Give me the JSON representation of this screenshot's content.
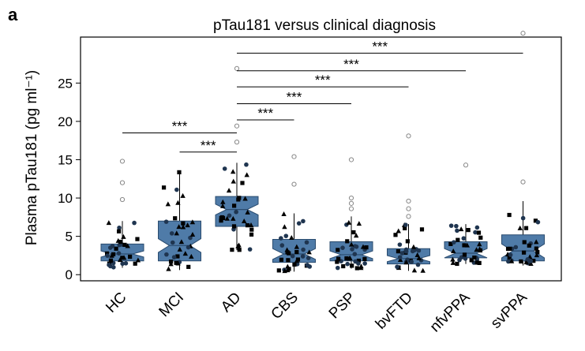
{
  "panel_label": "a",
  "chart_data": {
    "type": "box",
    "title": "pTau181 versus clinical diagnosis",
    "ylabel": "Plasma pTau181 (pg ml⁻¹)",
    "xlabel": "",
    "ylim": [
      -0.8,
      31
    ],
    "yticks": [
      0,
      5,
      10,
      15,
      20,
      25
    ],
    "grid": false,
    "categories": [
      "HC",
      "MCI",
      "AD",
      "CBS",
      "PSP",
      "bvFTD",
      "nfvPPA",
      "svPPA"
    ],
    "box_color": "#4f7ba8",
    "box_edge": "#2a4b6e",
    "series": [
      {
        "name": "HC",
        "q1": 1.8,
        "median": 2.7,
        "q3": 4.0,
        "notch_lo": 2.3,
        "notch_hi": 3.1,
        "whisker_lo": 0.9,
        "whisker_hi": 7.0,
        "outliers": [
          9.8,
          12.0,
          14.8
        ]
      },
      {
        "name": "MCI",
        "q1": 1.8,
        "median": 3.8,
        "q3": 7.0,
        "notch_lo": 2.9,
        "notch_hi": 4.7,
        "whisker_lo": 0.6,
        "whisker_hi": 13.5,
        "outliers": []
      },
      {
        "name": "AD",
        "q1": 6.3,
        "median": 8.5,
        "q3": 10.2,
        "notch_lo": 7.8,
        "notch_hi": 9.2,
        "whisker_lo": 3.2,
        "whisker_hi": 14.6,
        "outliers": [
          17.3,
          19.4,
          26.9
        ]
      },
      {
        "name": "CBS",
        "q1": 1.6,
        "median": 2.7,
        "q3": 4.6,
        "notch_lo": 2.0,
        "notch_hi": 3.4,
        "whisker_lo": 0.4,
        "whisker_hi": 8.0,
        "outliers": [
          11.8,
          15.4
        ]
      },
      {
        "name": "PSP",
        "q1": 1.8,
        "median": 2.6,
        "q3": 4.3,
        "notch_lo": 2.1,
        "notch_hi": 3.1,
        "whisker_lo": 0.8,
        "whisker_hi": 7.6,
        "outliers": [
          8.6,
          9.3,
          10.0,
          15.0
        ]
      },
      {
        "name": "bvFTD",
        "q1": 1.4,
        "median": 2.1,
        "q3": 3.4,
        "notch_lo": 1.7,
        "notch_hi": 2.5,
        "whisker_lo": 0.5,
        "whisker_hi": 6.6,
        "outliers": [
          7.6,
          8.6,
          9.6,
          18.1
        ]
      },
      {
        "name": "nfvPPA",
        "q1": 2.2,
        "median": 2.8,
        "q3": 4.3,
        "notch_lo": 2.2,
        "notch_hi": 3.4,
        "whisker_lo": 1.4,
        "whisker_hi": 6.6,
        "outliers": [
          14.3
        ]
      },
      {
        "name": "svPPA",
        "q1": 1.8,
        "median": 3.1,
        "q3": 5.2,
        "notch_lo": 2.2,
        "notch_hi": 4.0,
        "whisker_lo": 1.2,
        "whisker_hi": 9.6,
        "outliers": [
          12.1,
          31.5
        ]
      }
    ],
    "comparisons": [
      {
        "from": "HC",
        "to": "AD",
        "y": 18.5,
        "label": "***"
      },
      {
        "from": "MCI",
        "to": "AD",
        "y": 16.0,
        "label": "***"
      },
      {
        "from": "AD",
        "to": "CBS",
        "y": 20.2,
        "label": "***"
      },
      {
        "from": "AD",
        "to": "PSP",
        "y": 22.3,
        "label": "***"
      },
      {
        "from": "AD",
        "to": "bvFTD",
        "y": 24.5,
        "label": "***"
      },
      {
        "from": "AD",
        "to": "nfvPPA",
        "y": 26.6,
        "label": "***"
      },
      {
        "from": "AD",
        "to": "svPPA",
        "y": 28.9,
        "label": "***"
      }
    ]
  }
}
